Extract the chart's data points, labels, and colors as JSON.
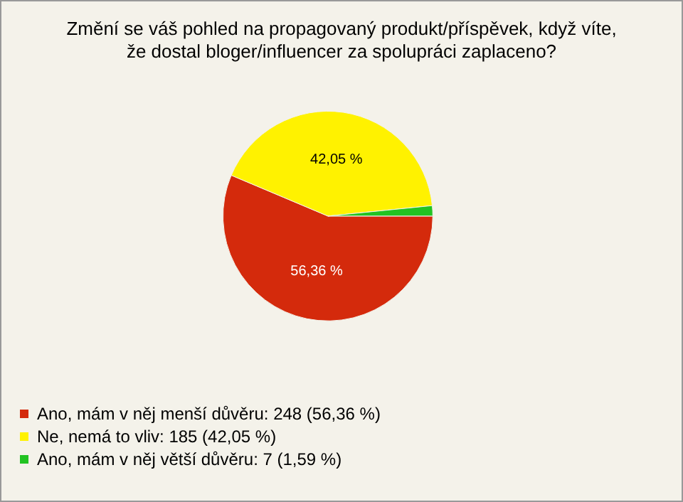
{
  "chart_data": {
    "type": "pie",
    "title": "Změní se váš pohled na propagovaný produkt/příspěvek, když víte,\nže dostal bloger/influencer za spolupráci zaplaceno?",
    "categories": [
      "Ano, mám v něj menší důvěru: 248 (56,36 %)",
      "Ne, nemá to vliv: 185 (42,05 %)",
      "Ano, mám v něj větší důvěru: 7 (1,59 %)"
    ],
    "values": [
      56.36,
      42.05,
      1.59
    ],
    "colors": [
      "#d42a0c",
      "#fff200",
      "#22c322"
    ],
    "value_labels": [
      "56,36 %",
      "42,05 %",
      null
    ],
    "legend": "bottom left"
  }
}
